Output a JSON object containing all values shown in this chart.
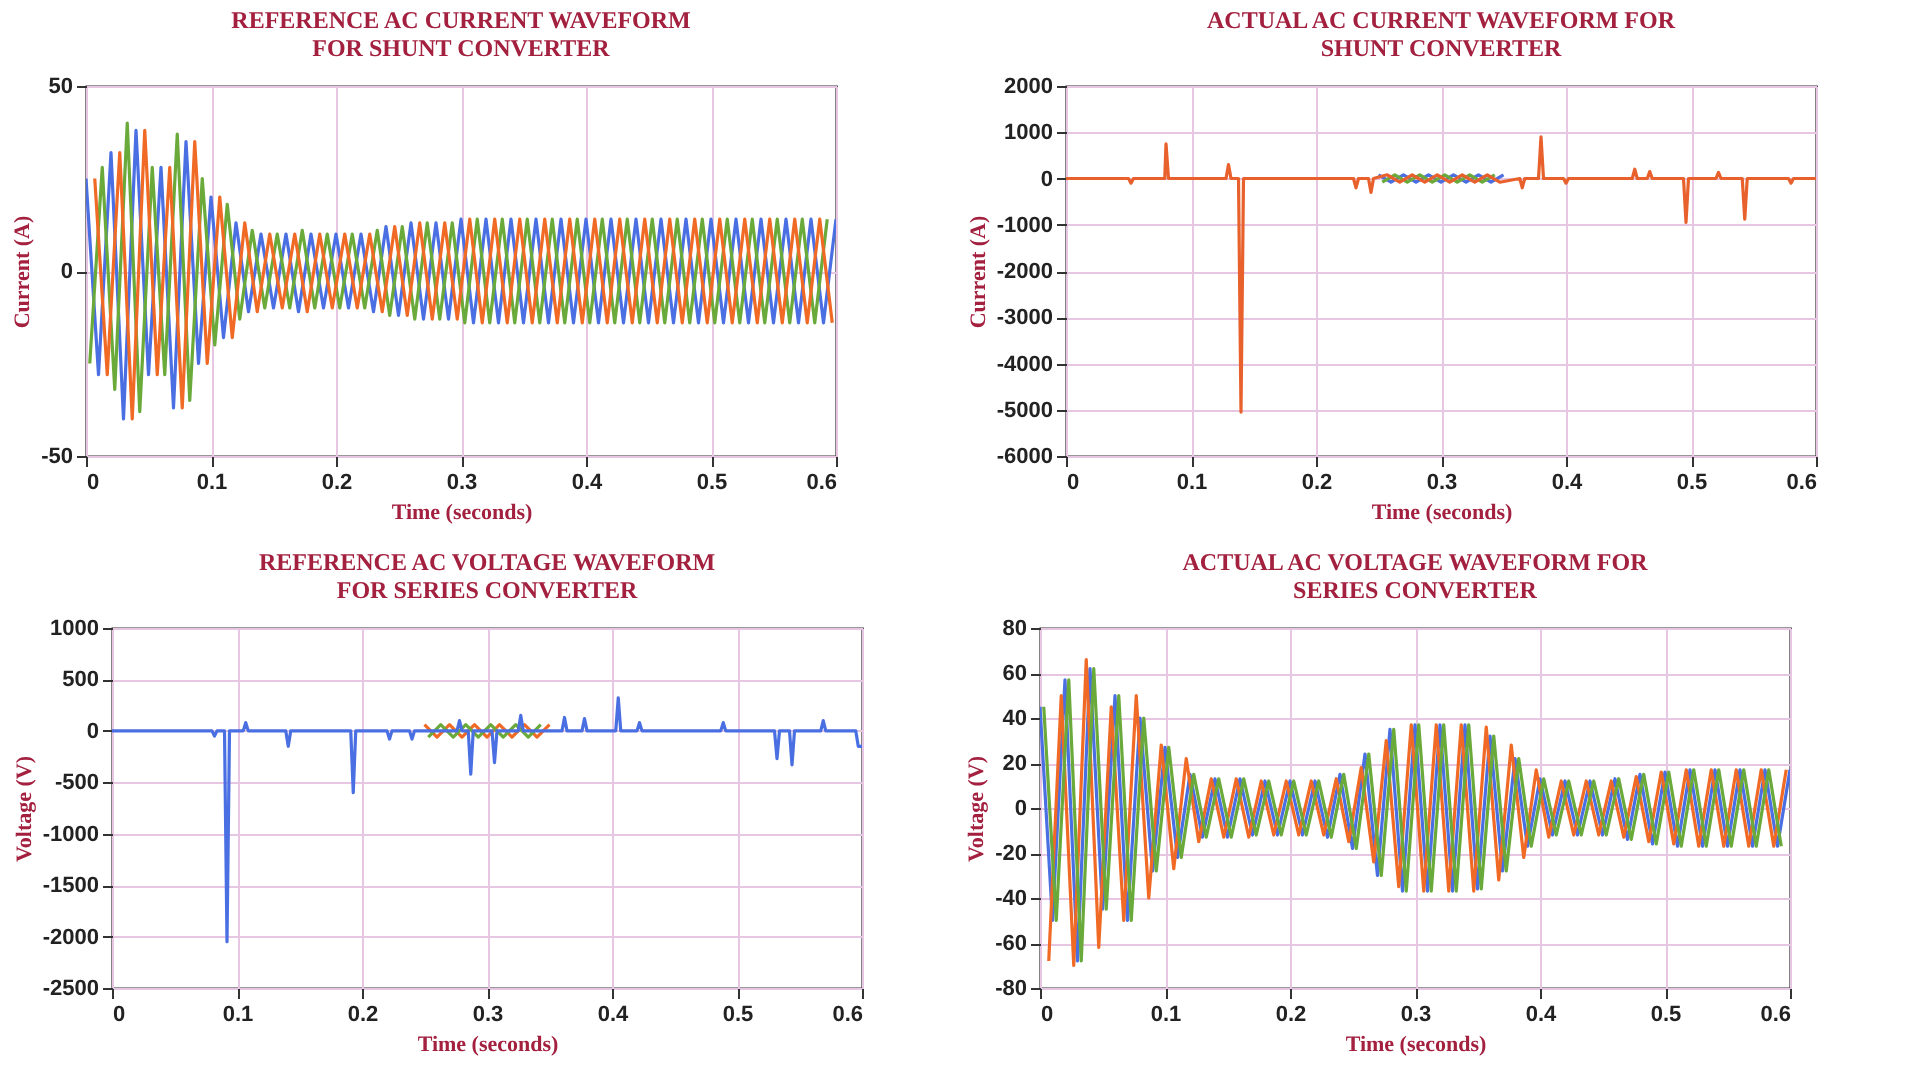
{
  "chart_data": [
    {
      "type": "line",
      "title": "REFERENCE AC CURRENT WAVEFORM\nFOR SHUNT CONVERTER",
      "xlabel": "Time (seconds)",
      "ylabel": "Current (A)",
      "xlim": [
        0,
        0.6
      ],
      "xticks": [
        0,
        0.1,
        0.2,
        0.3,
        0.4,
        0.5,
        0.6
      ],
      "ylim": [
        -50,
        50
      ],
      "yticks": [
        -50,
        0,
        50
      ],
      "grid": true,
      "series": [
        {
          "color": "#4a6fe3",
          "x": [
            0,
            0.01,
            0.02,
            0.03,
            0.04,
            0.05,
            0.06,
            0.07,
            0.08,
            0.09,
            0.1,
            0.11,
            0.12,
            0.13,
            0.14,
            0.15,
            0.16,
            0.17,
            0.18,
            0.19,
            0.2,
            0.21,
            0.22,
            0.23,
            0.24,
            0.25,
            0.26,
            0.27,
            0.28,
            0.29,
            0.3,
            0.31,
            0.32,
            0.33,
            0.34,
            0.35,
            0.36,
            0.37,
            0.38,
            0.39,
            0.4,
            0.41,
            0.42,
            0.43,
            0.44,
            0.45,
            0.46,
            0.47,
            0.48,
            0.49,
            0.5,
            0.51,
            0.52,
            0.53,
            0.54,
            0.55,
            0.56,
            0.57,
            0.58,
            0.59,
            0.6
          ],
          "values": [
            25,
            -28,
            32,
            -40,
            38,
            -28,
            28,
            -37,
            35,
            -25,
            20,
            -18,
            13,
            -11,
            10,
            -10,
            10,
            -11,
            10,
            -10,
            10,
            -10,
            10,
            -11,
            12,
            -12,
            13,
            -13,
            13,
            -13,
            14,
            -14,
            14,
            -14,
            14,
            -14,
            14,
            -14,
            14,
            -14,
            14,
            -14,
            14,
            -14,
            14,
            -14,
            14,
            -14,
            14,
            -14,
            14,
            -14,
            14,
            -14,
            14,
            -14,
            14,
            -14,
            14,
            -14,
            14
          ]
        },
        {
          "color": "#6aaa3a",
          "x": [
            0.003,
            0.013,
            0.023,
            0.033,
            0.043,
            0.053,
            0.063,
            0.073,
            0.083,
            0.093,
            0.103,
            0.113,
            0.123,
            0.133,
            0.143,
            0.153,
            0.163,
            0.173,
            0.183,
            0.193,
            0.203,
            0.213,
            0.223,
            0.233,
            0.243,
            0.253,
            0.263,
            0.273,
            0.283,
            0.293,
            0.303,
            0.313,
            0.323,
            0.333,
            0.343,
            0.353,
            0.363,
            0.373,
            0.383,
            0.393,
            0.403,
            0.413,
            0.423,
            0.433,
            0.443,
            0.453,
            0.463,
            0.473,
            0.483,
            0.493,
            0.503,
            0.513,
            0.523,
            0.533,
            0.543,
            0.553,
            0.563,
            0.573,
            0.583,
            0.593
          ],
          "values": [
            -25,
            28,
            -32,
            40,
            -38,
            28,
            -28,
            37,
            -35,
            25,
            -20,
            18,
            -13,
            11,
            -10,
            10,
            -10,
            11,
            -10,
            10,
            -10,
            10,
            -10,
            11,
            -12,
            12,
            -13,
            13,
            -13,
            13,
            -14,
            14,
            -14,
            14,
            -14,
            14,
            -14,
            14,
            -14,
            14,
            -14,
            14,
            -14,
            14,
            -14,
            14,
            -14,
            14,
            -14,
            14,
            -14,
            14,
            -14,
            14,
            -14,
            14,
            -14,
            14,
            -14,
            14
          ]
        },
        {
          "color": "#f06a25",
          "x": [
            0.007,
            0.017,
            0.027,
            0.037,
            0.047,
            0.057,
            0.067,
            0.077,
            0.087,
            0.097,
            0.107,
            0.117,
            0.127,
            0.137,
            0.147,
            0.157,
            0.167,
            0.177,
            0.187,
            0.197,
            0.207,
            0.217,
            0.227,
            0.237,
            0.247,
            0.257,
            0.267,
            0.277,
            0.287,
            0.297,
            0.307,
            0.317,
            0.327,
            0.337,
            0.347,
            0.357,
            0.367,
            0.377,
            0.387,
            0.397,
            0.407,
            0.417,
            0.427,
            0.437,
            0.447,
            0.457,
            0.467,
            0.477,
            0.487,
            0.497,
            0.507,
            0.517,
            0.527,
            0.537,
            0.547,
            0.557,
            0.567,
            0.577,
            0.587,
            0.597
          ],
          "values": [
            25,
            -28,
            32,
            -40,
            38,
            -28,
            28,
            -37,
            35,
            -25,
            20,
            -18,
            13,
            -11,
            10,
            -10,
            10,
            -11,
            10,
            -10,
            10,
            -10,
            10,
            -11,
            12,
            -12,
            13,
            -13,
            13,
            -13,
            14,
            -14,
            14,
            -14,
            14,
            -14,
            14,
            -14,
            14,
            -14,
            14,
            -14,
            14,
            -14,
            14,
            -14,
            14,
            -14,
            14,
            -14,
            14,
            -14,
            14,
            -14,
            14,
            -14,
            14,
            -14,
            14,
            -14
          ]
        }
      ]
    },
    {
      "type": "line",
      "title": "ACTUAL AC CURRENT WAVEFORM FOR\nSHUNT CONVERTER",
      "xlabel": "Time (seconds)",
      "ylabel": "Current (A)",
      "xlim": [
        0,
        0.6
      ],
      "xticks": [
        0,
        0.1,
        0.2,
        0.3,
        0.4,
        0.5,
        0.6
      ],
      "ylim": [
        -6000,
        2000
      ],
      "yticks": [
        -6000,
        -5000,
        -4000,
        -3000,
        -2000,
        -1000,
        0,
        1000,
        2000
      ],
      "grid": true,
      "series": [
        {
          "color": "#4a6fe3",
          "x": [
            0.25,
            0.26,
            0.27,
            0.28,
            0.29,
            0.3,
            0.31,
            0.32,
            0.33,
            0.34,
            0.35
          ],
          "values": [
            80,
            -80,
            80,
            -80,
            80,
            -80,
            80,
            -80,
            80,
            -80,
            80
          ]
        },
        {
          "color": "#6aaa3a",
          "x": [
            0.253,
            0.263,
            0.273,
            0.283,
            0.293,
            0.303,
            0.313,
            0.323,
            0.333,
            0.343
          ],
          "values": [
            -80,
            80,
            -80,
            80,
            -80,
            80,
            -80,
            80,
            -80,
            80
          ]
        },
        {
          "color": "#e8612c",
          "x": [
            0,
            0.05,
            0.052,
            0.054,
            0.079,
            0.08,
            0.082,
            0.128,
            0.13,
            0.132,
            0.138,
            0.14,
            0.142,
            0.23,
            0.232,
            0.234,
            0.242,
            0.244,
            0.246,
            0.257,
            0.267,
            0.277,
            0.287,
            0.297,
            0.307,
            0.317,
            0.327,
            0.337,
            0.347,
            0.363,
            0.365,
            0.367,
            0.378,
            0.38,
            0.382,
            0.398,
            0.4,
            0.402,
            0.453,
            0.455,
            0.457,
            0.465,
            0.467,
            0.469,
            0.494,
            0.496,
            0.498,
            0.52,
            0.522,
            0.524,
            0.541,
            0.543,
            0.545,
            0.578,
            0.58,
            0.582,
            0.6
          ],
          "values": [
            0,
            0,
            -100,
            0,
            0,
            750,
            0,
            0,
            300,
            0,
            0,
            -5050,
            0,
            0,
            -200,
            0,
            0,
            -300,
            0,
            80,
            -80,
            80,
            -80,
            80,
            -80,
            80,
            -80,
            80,
            -80,
            0,
            -200,
            0,
            0,
            900,
            0,
            0,
            -100,
            0,
            0,
            200,
            0,
            0,
            150,
            0,
            0,
            -950,
            0,
            0,
            130,
            0,
            0,
            -880,
            0,
            0,
            -100,
            0,
            0
          ]
        }
      ]
    },
    {
      "type": "line",
      "title": "REFERENCE AC VOLTAGE WAVEFORM\nFOR SERIES CONVERTER",
      "xlabel": "Time (seconds)",
      "ylabel": "Voltage (V)",
      "xlim": [
        0,
        0.6
      ],
      "xticks": [
        0,
        0.1,
        0.2,
        0.3,
        0.4,
        0.5,
        0.6
      ],
      "ylim": [
        -2500,
        1000
      ],
      "yticks": [
        -2500,
        -2000,
        -1500,
        -1000,
        -500,
        0,
        500,
        1000
      ],
      "grid": true,
      "series": [
        {
          "color": "#f06a25",
          "x": [
            0.25,
            0.26,
            0.27,
            0.28,
            0.29,
            0.3,
            0.31,
            0.32,
            0.33,
            0.34,
            0.35
          ],
          "values": [
            60,
            -60,
            60,
            -60,
            60,
            -60,
            60,
            -60,
            60,
            -60,
            60
          ]
        },
        {
          "color": "#6aaa3a",
          "x": [
            0.253,
            0.263,
            0.273,
            0.283,
            0.293,
            0.303,
            0.313,
            0.323,
            0.333,
            0.343
          ],
          "values": [
            -60,
            60,
            -60,
            60,
            -60,
            60,
            -60,
            60,
            -60,
            60
          ]
        },
        {
          "color": "#4a6fe3",
          "x": [
            0,
            0.08,
            0.082,
            0.084,
            0.09,
            0.092,
            0.094,
            0.105,
            0.107,
            0.109,
            0.139,
            0.141,
            0.143,
            0.191,
            0.193,
            0.195,
            0.22,
            0.222,
            0.224,
            0.238,
            0.24,
            0.242,
            0.276,
            0.278,
            0.28,
            0.285,
            0.287,
            0.289,
            0.304,
            0.306,
            0.308,
            0.325,
            0.327,
            0.329,
            0.36,
            0.362,
            0.364,
            0.376,
            0.378,
            0.38,
            0.403,
            0.405,
            0.407,
            0.42,
            0.422,
            0.424,
            0.487,
            0.489,
            0.491,
            0.53,
            0.532,
            0.534,
            0.542,
            0.544,
            0.546,
            0.567,
            0.569,
            0.571,
            0.595,
            0.597,
            0.6
          ],
          "values": [
            0,
            0,
            -50,
            0,
            0,
            -2050,
            0,
            0,
            80,
            0,
            0,
            -150,
            0,
            0,
            -600,
            0,
            0,
            -80,
            0,
            0,
            -80,
            0,
            0,
            100,
            0,
            0,
            -420,
            0,
            0,
            -310,
            0,
            0,
            150,
            0,
            0,
            130,
            0,
            0,
            120,
            0,
            0,
            320,
            0,
            0,
            80,
            0,
            0,
            80,
            0,
            0,
            -270,
            0,
            0,
            -330,
            0,
            0,
            100,
            0,
            0,
            -150,
            -150
          ]
        }
      ]
    },
    {
      "type": "line",
      "title": "ACTUAL AC VOLTAGE WAVEFORM FOR\nSERIES CONVERTER",
      "xlabel": "Time (seconds)",
      "ylabel": "Voltage (V)",
      "xlim": [
        0,
        0.6
      ],
      "xticks": [
        0,
        0.1,
        0.2,
        0.3,
        0.4,
        0.5,
        0.6
      ],
      "ylim": [
        -80,
        80
      ],
      "yticks": [
        -80,
        -60,
        -40,
        -20,
        0,
        20,
        40,
        60,
        80
      ],
      "grid": true,
      "series": [
        {
          "color": "#4a6fe3",
          "x": [
            0,
            0.01,
            0.02,
            0.03,
            0.04,
            0.05,
            0.06,
            0.07,
            0.08,
            0.09,
            0.1,
            0.11,
            0.12,
            0.13,
            0.14,
            0.15,
            0.16,
            0.17,
            0.18,
            0.19,
            0.2,
            0.21,
            0.22,
            0.23,
            0.24,
            0.25,
            0.26,
            0.27,
            0.28,
            0.29,
            0.3,
            0.31,
            0.32,
            0.33,
            0.34,
            0.35,
            0.36,
            0.37,
            0.38,
            0.39,
            0.4,
            0.41,
            0.42,
            0.43,
            0.44,
            0.45,
            0.46,
            0.47,
            0.48,
            0.49,
            0.5,
            0.51,
            0.52,
            0.53,
            0.54,
            0.55,
            0.56,
            0.57,
            0.58,
            0.59,
            0.6
          ],
          "values": [
            45,
            -50,
            57,
            -68,
            62,
            -45,
            50,
            -50,
            40,
            -28,
            27,
            -22,
            15,
            -13,
            13,
            -13,
            13,
            -12,
            12,
            -12,
            12,
            -12,
            12,
            -13,
            15,
            -18,
            24,
            -30,
            35,
            -37,
            37,
            -37,
            37,
            -37,
            37,
            -36,
            32,
            -28,
            22,
            -17,
            13,
            -12,
            12,
            -12,
            12,
            -12,
            13,
            -14,
            15,
            -16,
            16,
            -17,
            17,
            -17,
            17,
            -17,
            17,
            -17,
            17,
            -17,
            17
          ]
        },
        {
          "color": "#f06a25",
          "x": [
            0.007,
            0.017,
            0.027,
            0.037,
            0.047,
            0.057,
            0.067,
            0.077,
            0.087,
            0.097,
            0.107,
            0.117,
            0.127,
            0.137,
            0.147,
            0.157,
            0.167,
            0.177,
            0.187,
            0.197,
            0.207,
            0.217,
            0.227,
            0.237,
            0.247,
            0.257,
            0.267,
            0.277,
            0.287,
            0.297,
            0.307,
            0.317,
            0.327,
            0.337,
            0.347,
            0.357,
            0.367,
            0.377,
            0.387,
            0.397,
            0.407,
            0.417,
            0.427,
            0.437,
            0.447,
            0.457,
            0.467,
            0.477,
            0.487,
            0.497,
            0.507,
            0.517,
            0.527,
            0.537,
            0.547,
            0.557,
            0.567,
            0.577,
            0.587,
            0.597
          ],
          "values": [
            -68,
            50,
            -70,
            66,
            -62,
            45,
            -50,
            50,
            -40,
            28,
            -27,
            22,
            -15,
            13,
            -13,
            13,
            -13,
            12,
            -12,
            12,
            -12,
            12,
            -12,
            13,
            -15,
            18,
            -24,
            30,
            -35,
            37,
            -37,
            37,
            -37,
            37,
            -37,
            36,
            -32,
            28,
            -22,
            17,
            -13,
            12,
            -12,
            12,
            -12,
            12,
            -13,
            14,
            -15,
            16,
            -16,
            17,
            -17,
            17,
            -17,
            17,
            -17,
            17,
            -17,
            17
          ]
        },
        {
          "color": "#6aaa3a",
          "x": [
            0.003,
            0.013,
            0.023,
            0.033,
            0.043,
            0.053,
            0.063,
            0.073,
            0.083,
            0.093,
            0.103,
            0.113,
            0.123,
            0.133,
            0.143,
            0.153,
            0.163,
            0.173,
            0.183,
            0.193,
            0.203,
            0.213,
            0.223,
            0.233,
            0.243,
            0.253,
            0.263,
            0.273,
            0.283,
            0.293,
            0.303,
            0.313,
            0.323,
            0.333,
            0.343,
            0.353,
            0.363,
            0.373,
            0.383,
            0.393,
            0.403,
            0.413,
            0.423,
            0.433,
            0.443,
            0.453,
            0.463,
            0.473,
            0.483,
            0.493,
            0.503,
            0.513,
            0.523,
            0.533,
            0.543,
            0.553,
            0.563,
            0.573,
            0.583,
            0.593
          ],
          "values": [
            45,
            -50,
            57,
            -68,
            62,
            -45,
            50,
            -50,
            40,
            -28,
            27,
            -22,
            15,
            -13,
            13,
            -13,
            13,
            -12,
            12,
            -12,
            12,
            -12,
            12,
            -13,
            15,
            -18,
            24,
            -30,
            35,
            -37,
            37,
            -37,
            37,
            -37,
            37,
            -36,
            32,
            -28,
            22,
            -17,
            13,
            -12,
            12,
            -12,
            12,
            -12,
            13,
            -14,
            15,
            -16,
            16,
            -17,
            17,
            -17,
            17,
            -17,
            17,
            -17,
            17,
            -17
          ]
        }
      ]
    }
  ]
}
